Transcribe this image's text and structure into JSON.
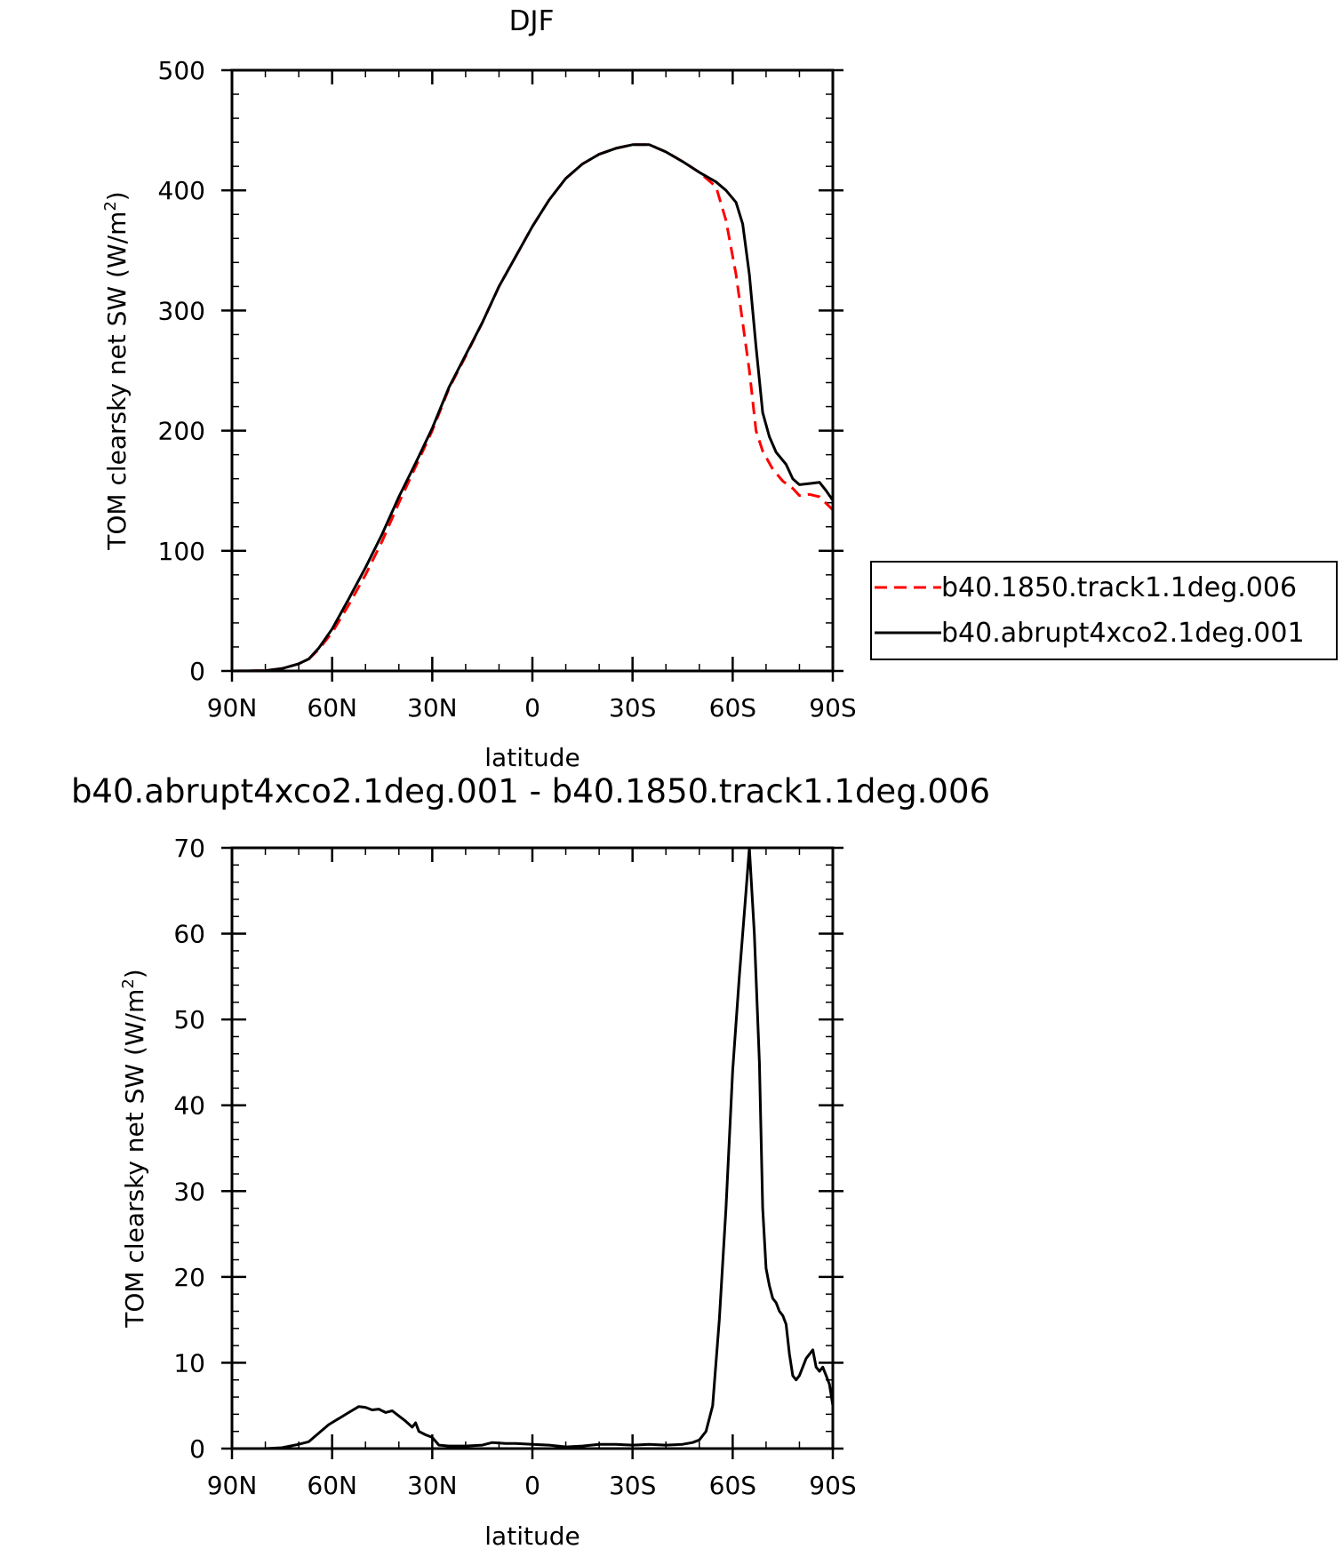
{
  "chart_data": [
    {
      "type": "line",
      "title": "DJF",
      "xlabel": "latitude",
      "ylabel": "TOM clearsky net SW (W/m",
      "ylabel_sup": "2",
      "ylabel_end": ")",
      "xlim": [
        -90,
        90
      ],
      "ylim": [
        0,
        500
      ],
      "x_ticks": [
        {
          "v": -90,
          "label": "90N"
        },
        {
          "v": -60,
          "label": "60N"
        },
        {
          "v": -30,
          "label": "30N"
        },
        {
          "v": 0,
          "label": "0"
        },
        {
          "v": 30,
          "label": "30S"
        },
        {
          "v": 60,
          "label": "60S"
        },
        {
          "v": 90,
          "label": "90S"
        }
      ],
      "y_ticks": [
        0,
        100,
        200,
        300,
        400,
        500
      ],
      "legend_position": "right",
      "series": [
        {
          "name": "b40.1850.track1.1deg.006",
          "color": "#ff0000",
          "dash": "dashed",
          "points": [
            [
              -90,
              0
            ],
            [
              -80,
              0.3
            ],
            [
              -75,
              2
            ],
            [
              -70,
              6
            ],
            [
              -67,
              10
            ],
            [
              -64,
              18
            ],
            [
              -60,
              32
            ],
            [
              -55,
              55
            ],
            [
              -50,
              80
            ],
            [
              -45,
              108
            ],
            [
              -40,
              140
            ],
            [
              -35,
              170
            ],
            [
              -30,
              200
            ],
            [
              -25,
              235
            ],
            [
              -20,
              262
            ],
            [
              -15,
              290
            ],
            [
              -10,
              320
            ],
            [
              -5,
              345
            ],
            [
              0,
              370
            ],
            [
              5,
              392
            ],
            [
              10,
              410
            ],
            [
              15,
              422
            ],
            [
              20,
              430
            ],
            [
              25,
              435
            ],
            [
              30,
              438
            ],
            [
              35,
              438
            ],
            [
              40,
              432
            ],
            [
              45,
              424
            ],
            [
              50,
              415
            ],
            [
              55,
              403
            ],
            [
              58,
              375
            ],
            [
              61,
              330
            ],
            [
              63,
              290
            ],
            [
              65,
              250
            ],
            [
              67,
              200
            ],
            [
              69,
              183
            ],
            [
              72,
              168
            ],
            [
              75,
              158
            ],
            [
              78,
              152
            ],
            [
              80,
              146
            ],
            [
              83,
              147
            ],
            [
              86,
              145
            ],
            [
              90,
              134
            ]
          ]
        },
        {
          "name": "b40.abrupt4xco2.1deg.001",
          "color": "#000000",
          "dash": "solid",
          "points": [
            [
              -90,
              0
            ],
            [
              -80,
              0.3
            ],
            [
              -75,
              2
            ],
            [
              -70,
              6
            ],
            [
              -67,
              10
            ],
            [
              -64,
              19
            ],
            [
              -60,
              35
            ],
            [
              -55,
              60
            ],
            [
              -50,
              86
            ],
            [
              -45,
              114
            ],
            [
              -40,
              145
            ],
            [
              -35,
              173
            ],
            [
              -30,
              202
            ],
            [
              -25,
              236
            ],
            [
              -20,
              263
            ],
            [
              -15,
              290
            ],
            [
              -10,
              320
            ],
            [
              -5,
              345
            ],
            [
              0,
              370
            ],
            [
              5,
              392
            ],
            [
              10,
              410
            ],
            [
              15,
              422
            ],
            [
              20,
              430
            ],
            [
              25,
              435
            ],
            [
              30,
              438
            ],
            [
              35,
              438
            ],
            [
              40,
              432
            ],
            [
              45,
              424
            ],
            [
              50,
              415
            ],
            [
              55,
              407
            ],
            [
              58,
              400
            ],
            [
              61,
              390
            ],
            [
              63,
              372
            ],
            [
              65,
              330
            ],
            [
              67,
              270
            ],
            [
              69,
              215
            ],
            [
              71,
              195
            ],
            [
              73,
              182
            ],
            [
              76,
              172
            ],
            [
              78,
              160
            ],
            [
              80,
              155
            ],
            [
              83,
              156
            ],
            [
              86,
              157
            ],
            [
              88,
              150
            ],
            [
              90,
              142
            ]
          ]
        }
      ]
    },
    {
      "type": "line",
      "title": "b40.abrupt4xco2.1deg.001 - b40.1850.track1.1deg.006",
      "xlabel": "latitude",
      "ylabel": "TOM clearsky net SW (W/m",
      "ylabel_sup": "2",
      "ylabel_end": ")",
      "xlim": [
        -90,
        90
      ],
      "ylim": [
        0,
        70
      ],
      "x_ticks": [
        {
          "v": -90,
          "label": "90N"
        },
        {
          "v": -60,
          "label": "60N"
        },
        {
          "v": -30,
          "label": "30N"
        },
        {
          "v": 0,
          "label": "0"
        },
        {
          "v": 30,
          "label": "30S"
        },
        {
          "v": 60,
          "label": "60S"
        },
        {
          "v": 90,
          "label": "90S"
        }
      ],
      "y_ticks": [
        0,
        10,
        20,
        30,
        40,
        50,
        60,
        70
      ],
      "series": [
        {
          "name": "",
          "color": "#000000",
          "dash": "solid",
          "points": [
            [
              -90,
              0
            ],
            [
              -80,
              0
            ],
            [
              -75,
              0.1
            ],
            [
              -70,
              0.5
            ],
            [
              -67,
              0.8
            ],
            [
              -64,
              1.8
            ],
            [
              -61,
              2.8
            ],
            [
              -58,
              3.5
            ],
            [
              -55,
              4.2
            ],
            [
              -52,
              4.9
            ],
            [
              -50,
              4.8
            ],
            [
              -48,
              4.5
            ],
            [
              -46,
              4.6
            ],
            [
              -44,
              4.2
            ],
            [
              -42,
              4.4
            ],
            [
              -40,
              3.8
            ],
            [
              -38,
              3.2
            ],
            [
              -36,
              2.5
            ],
            [
              -35,
              3.0
            ],
            [
              -34,
              2.0
            ],
            [
              -32,
              1.6
            ],
            [
              -30,
              1.3
            ],
            [
              -28,
              0.4
            ],
            [
              -25,
              0.3
            ],
            [
              -20,
              0.3
            ],
            [
              -15,
              0.4
            ],
            [
              -12,
              0.7
            ],
            [
              -8,
              0.6
            ],
            [
              -5,
              0.6
            ],
            [
              0,
              0.5
            ],
            [
              5,
              0.4
            ],
            [
              10,
              0.2
            ],
            [
              15,
              0.3
            ],
            [
              20,
              0.5
            ],
            [
              25,
              0.5
            ],
            [
              30,
              0.4
            ],
            [
              35,
              0.5
            ],
            [
              40,
              0.4
            ],
            [
              45,
              0.5
            ],
            [
              48,
              0.7
            ],
            [
              50,
              1.0
            ],
            [
              52,
              2.0
            ],
            [
              54,
              5.0
            ],
            [
              56,
              15
            ],
            [
              58,
              28
            ],
            [
              60,
              44
            ],
            [
              62,
              55
            ],
            [
              64,
              65
            ],
            [
              65,
              70
            ],
            [
              66.5,
              60
            ],
            [
              68,
              45
            ],
            [
              69,
              28
            ],
            [
              70,
              21
            ],
            [
              71,
              19
            ],
            [
              72,
              17.5
            ],
            [
              73,
              17
            ],
            [
              74,
              16
            ],
            [
              75,
              15.5
            ],
            [
              76,
              14.5
            ],
            [
              77,
              11
            ],
            [
              78,
              8.5
            ],
            [
              79,
              8
            ],
            [
              80,
              8.5
            ],
            [
              82,
              10.5
            ],
            [
              84,
              11.5
            ],
            [
              85,
              9.5
            ],
            [
              86,
              9
            ],
            [
              87,
              9.5
            ],
            [
              88,
              8.5
            ],
            [
              89,
              7.5
            ],
            [
              90,
              5
            ]
          ]
        }
      ]
    }
  ]
}
